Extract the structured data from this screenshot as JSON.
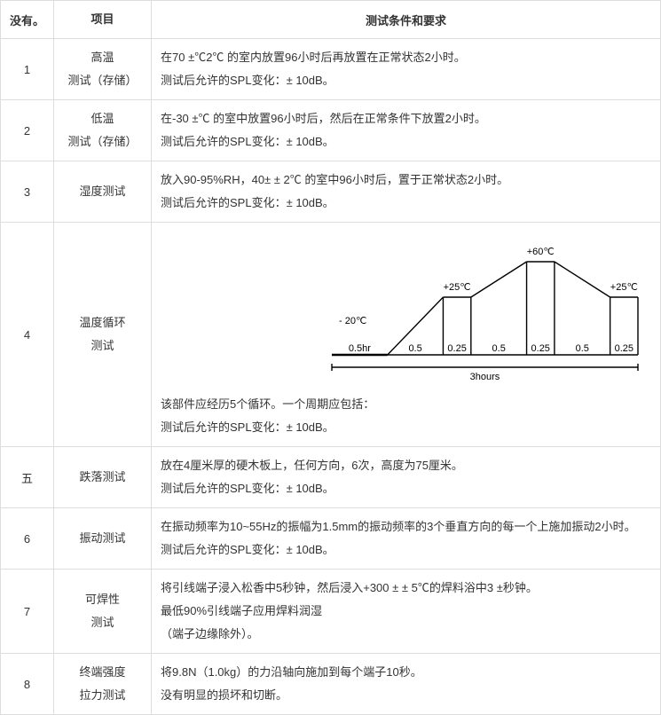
{
  "header": {
    "no": "没有。",
    "item": "项目",
    "cond": "测试条件和要求"
  },
  "rows": [
    {
      "no": "1",
      "item_l1": "高温",
      "item_l2": "测试（存储）",
      "cond_l1": "在70 ±℃2℃ 的室内放置96小时后再放置在正常状态2小时。",
      "cond_l2": "测试后允许的SPL变化：± 10dB。"
    },
    {
      "no": "2",
      "item_l1": "低温",
      "item_l2": "测试（存储）",
      "cond_l1": "在-30 ±℃ 的室中放置96小时后，然后在正常条件下放置2小时。",
      "cond_l2": "测试后允许的SPL变化：± 10dB。"
    },
    {
      "no": "3",
      "item_l1": "湿度测试",
      "cond_l1": "放入90-95%RH，40± ± 2℃ 的室中96小时后，置于正常状态2小时。",
      "cond_l2": "测试后允许的SPL变化：± 10dB。"
    },
    {
      "no": "4",
      "item_l1": "温度循环",
      "item_l2": "测试",
      "cond_l1": "该部件应经历5个循环。一个周期应包括：",
      "cond_l2": "测试后允许的SPL变化：± 10dB。"
    },
    {
      "no": "五",
      "item_l1": "跌落测试",
      "cond_l1": "放在4厘米厚的硬木板上，任何方向，6次，高度为75厘米。",
      "cond_l2": "测试后允许的SPL变化：± 10dB。"
    },
    {
      "no": "6",
      "item_l1": "振动测试",
      "cond_l1": "在振动频率为10~55Hz的振幅为1.5mm的振动频率的3个垂直方向的每一个上施加振动2小时。",
      "cond_l2": "测试后允许的SPL变化：± 10dB。"
    },
    {
      "no": "7",
      "item_l1": "可焊性",
      "item_l2": "测试",
      "cond_l1": "将引线端子浸入松香中5秒钟，然后浸入+300 ± ± 5℃的焊料浴中3 ±秒钟。",
      "cond_l2": "最低90%引线端子应用焊料润湿",
      "cond_l3": "（端子边缘除外）。"
    },
    {
      "no": "8",
      "item_l1": "终端强度",
      "item_l2": "拉力测试",
      "cond_l1": "将9.8N（1.0kg）的力沿轴向施加到每个端子10秒。",
      "cond_l2": "没有明显的损坏和切断。"
    }
  ],
  "chart": {
    "temps": {
      "t1": "- 20℃",
      "t2": "+25℃",
      "t3": "+60℃",
      "t4": "+25℃"
    },
    "durations": [
      "0.5hr",
      "0.5",
      "0.25",
      "0.5",
      "0.25",
      "0.5",
      "0.25"
    ],
    "total": "3hours",
    "stroke": "#000000",
    "font": "11px Arial"
  }
}
